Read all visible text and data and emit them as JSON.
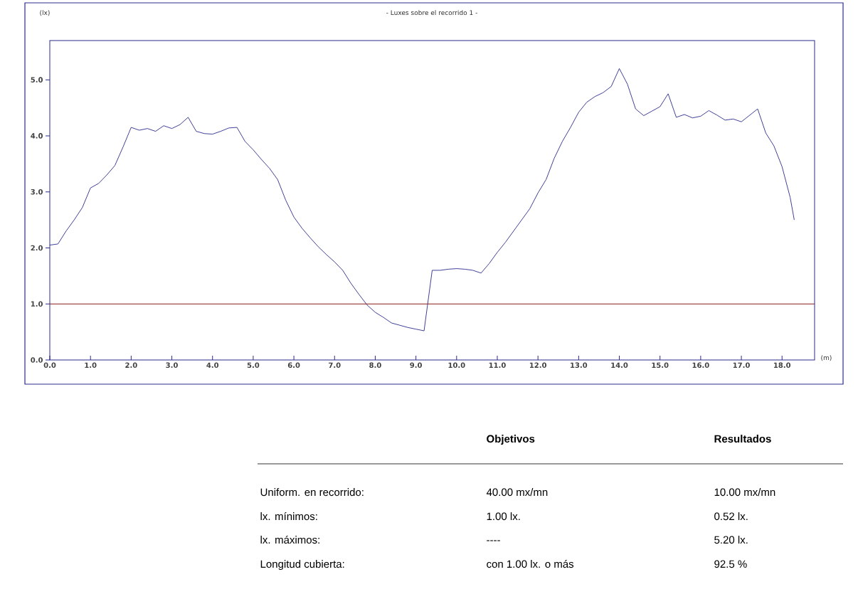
{
  "chart_data": {
    "type": "line",
    "title": "- Luxes sobre el recorrido 1 -",
    "xlabel": "(m)",
    "ylabel": "(lx)",
    "x": [
      0.0,
      0.2,
      0.4,
      0.6,
      0.8,
      1.0,
      1.2,
      1.4,
      1.6,
      1.8,
      2.0,
      2.2,
      2.4,
      2.6,
      2.8,
      3.0,
      3.2,
      3.4,
      3.6,
      3.8,
      4.0,
      4.2,
      4.4,
      4.6,
      4.8,
      5.0,
      5.2,
      5.4,
      5.6,
      5.8,
      6.0,
      6.2,
      6.4,
      6.6,
      6.8,
      7.0,
      7.2,
      7.4,
      7.6,
      7.8,
      8.0,
      8.2,
      8.4,
      8.6,
      8.8,
      9.0,
      9.2,
      9.4,
      9.6,
      9.8,
      10.0,
      10.2,
      10.4,
      10.6,
      10.8,
      11.0,
      11.2,
      11.4,
      11.6,
      11.8,
      12.0,
      12.2,
      12.4,
      12.6,
      12.8,
      13.0,
      13.2,
      13.4,
      13.6,
      13.8,
      14.0,
      14.2,
      14.4,
      14.6,
      14.8,
      15.0,
      15.2,
      15.4,
      15.6,
      15.8,
      16.0,
      16.2,
      16.4,
      16.6,
      16.8,
      17.0,
      17.4,
      17.6,
      17.8,
      18.0,
      18.2,
      18.3
    ],
    "series": [
      {
        "color": "#2b2b8c",
        "values": [
          2.05,
          2.07,
          2.3,
          2.5,
          2.72,
          3.07,
          3.15,
          3.3,
          3.47,
          3.8,
          4.15,
          4.1,
          4.13,
          4.08,
          4.18,
          4.13,
          4.2,
          4.33,
          4.08,
          4.04,
          4.03,
          4.08,
          4.14,
          4.15,
          3.9,
          3.75,
          3.58,
          3.42,
          3.22,
          2.85,
          2.55,
          2.35,
          2.18,
          2.02,
          1.88,
          1.75,
          1.6,
          1.37,
          1.17,
          0.98,
          0.85,
          0.76,
          0.66,
          0.62,
          0.58,
          0.55,
          0.52,
          1.6,
          1.6,
          1.62,
          1.63,
          1.62,
          1.6,
          1.55,
          1.72,
          1.92,
          2.1,
          2.3,
          2.5,
          2.7,
          2.98,
          3.22,
          3.6,
          3.9,
          4.15,
          4.42,
          4.6,
          4.7,
          4.77,
          4.88,
          5.2,
          4.92,
          4.48,
          4.36,
          4.44,
          4.52,
          4.75,
          4.33,
          4.38,
          4.32,
          4.35,
          4.45,
          4.37,
          4.28,
          4.3,
          4.25,
          4.48,
          4.05,
          3.82,
          3.45,
          2.9,
          2.5
        ]
      }
    ],
    "xlim": [
      0,
      18.8
    ],
    "ylim": [
      0,
      5.7
    ],
    "xticks": [
      {
        "value": 0,
        "label": "0.0"
      },
      {
        "value": 1,
        "label": "1.0"
      },
      {
        "value": 2,
        "label": "2.0"
      },
      {
        "value": 3,
        "label": "3.0"
      },
      {
        "value": 4,
        "label": "4.0"
      },
      {
        "value": 5,
        "label": "5.0"
      },
      {
        "value": 6,
        "label": "6.0"
      },
      {
        "value": 7,
        "label": "7.0"
      },
      {
        "value": 8,
        "label": "8.0"
      },
      {
        "value": 9,
        "label": "9.0"
      },
      {
        "value": 10,
        "label": "10.0"
      },
      {
        "value": 11,
        "label": "11.0"
      },
      {
        "value": 12,
        "label": "12.0"
      },
      {
        "value": 13,
        "label": "13.0"
      },
      {
        "value": 14,
        "label": "14.0"
      },
      {
        "value": 15,
        "label": "15.0"
      },
      {
        "value": 16,
        "label": "16.0"
      },
      {
        "value": 17,
        "label": "17.0"
      },
      {
        "value": 18,
        "label": "18.0"
      }
    ],
    "yticks": [
      {
        "value": 0,
        "label": "0.0"
      },
      {
        "value": 1,
        "label": "1.0"
      },
      {
        "value": 2,
        "label": "2.0"
      },
      {
        "value": 3,
        "label": "3.0"
      },
      {
        "value": 4,
        "label": "4.0"
      },
      {
        "value": 5,
        "label": "5.0"
      }
    ],
    "ref_lines": [
      {
        "axis": "y",
        "value": 1,
        "color": "#8b1a1a"
      }
    ],
    "annotations": [
      "Objetivos",
      "Resultados",
      "Uniform. en recorrido:",
      "40.00 mx/mn",
      "10.00 mx/mn",
      "lx. mínimos:",
      "1.00 lx.",
      "0.52 lx.",
      "lx. máximos:",
      "----",
      "5.20 lx.",
      "Longitud cubierta:",
      "con 1.00 lx. o más",
      "92.5 %"
    ]
  }
}
